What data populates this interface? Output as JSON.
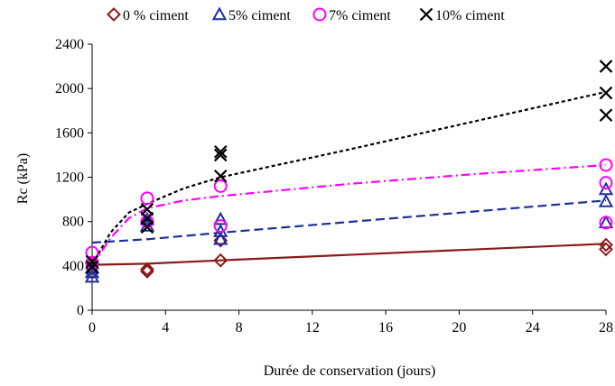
{
  "chart_data": {
    "type": "scatter",
    "title": "",
    "xlabel": "Durée de conservation (jours)",
    "ylabel": "Rc (kPa)",
    "xlim": [
      0,
      28
    ],
    "ylim": [
      0,
      2400
    ],
    "xticks": [
      0,
      4,
      8,
      12,
      16,
      20,
      24,
      28
    ],
    "yticks": [
      0,
      400,
      800,
      1200,
      1600,
      2000,
      2400
    ],
    "grid": false,
    "legend_position": "top",
    "series": [
      {
        "name": "0 % ciment",
        "marker": "diamond",
        "color": "#8B1A1A",
        "points": [
          [
            0,
            340
          ],
          [
            0,
            380
          ],
          [
            0,
            420
          ],
          [
            3,
            350
          ],
          [
            3,
            370
          ],
          [
            7,
            450
          ],
          [
            7,
            630
          ],
          [
            28,
            550
          ],
          [
            28,
            590
          ]
        ],
        "trend": {
          "style": "solid",
          "points": [
            [
              0,
              410
            ],
            [
              3,
              420
            ],
            [
              7,
              450
            ],
            [
              28,
              600
            ]
          ]
        }
      },
      {
        "name": "5% ciment",
        "marker": "triangle",
        "color": "#1F2F9A",
        "points": [
          [
            0,
            300
          ],
          [
            0,
            340
          ],
          [
            0,
            380
          ],
          [
            3,
            760
          ],
          [
            3,
            820
          ],
          [
            7,
            640
          ],
          [
            7,
            710
          ],
          [
            7,
            820
          ],
          [
            28,
            790
          ],
          [
            28,
            980
          ],
          [
            28,
            1090
          ]
        ],
        "trend": {
          "style": "dashed",
          "points": [
            [
              0,
              610
            ],
            [
              3,
              640
            ],
            [
              7,
              700
            ],
            [
              28,
              990
            ]
          ]
        }
      },
      {
        "name": "7% ciment",
        "marker": "circle",
        "color": "#FF00FF",
        "points": [
          [
            0,
            430
          ],
          [
            0,
            520
          ],
          [
            3,
            800
          ],
          [
            3,
            1010
          ],
          [
            7,
            760
          ],
          [
            7,
            1120
          ],
          [
            28,
            790
          ],
          [
            28,
            1150
          ],
          [
            28,
            1310
          ]
        ],
        "trend": {
          "style": "dashdot",
          "points": [
            [
              0,
              400
            ],
            [
              1,
              650
            ],
            [
              2,
              830
            ],
            [
              3,
              920
            ],
            [
              5,
              990
            ],
            [
              7,
              1030
            ],
            [
              14,
              1140
            ],
            [
              21,
              1230
            ],
            [
              28,
              1310
            ]
          ]
        }
      },
      {
        "name": "10% ciment",
        "marker": "x",
        "color": "#000000",
        "points": [
          [
            0,
            390
          ],
          [
            0,
            440
          ],
          [
            3,
            750
          ],
          [
            3,
            830
          ],
          [
            3,
            910
          ],
          [
            7,
            1210
          ],
          [
            7,
            1400
          ],
          [
            7,
            1430
          ],
          [
            28,
            1760
          ],
          [
            28,
            1960
          ],
          [
            28,
            2200
          ]
        ],
        "trend": {
          "style": "dotted",
          "points": [
            [
              0,
              410
            ],
            [
              1,
              700
            ],
            [
              2,
              880
            ],
            [
              3,
              960
            ],
            [
              5,
              1100
            ],
            [
              7,
              1200
            ],
            [
              14,
              1450
            ],
            [
              21,
              1710
            ],
            [
              28,
              1970
            ]
          ]
        }
      }
    ]
  }
}
